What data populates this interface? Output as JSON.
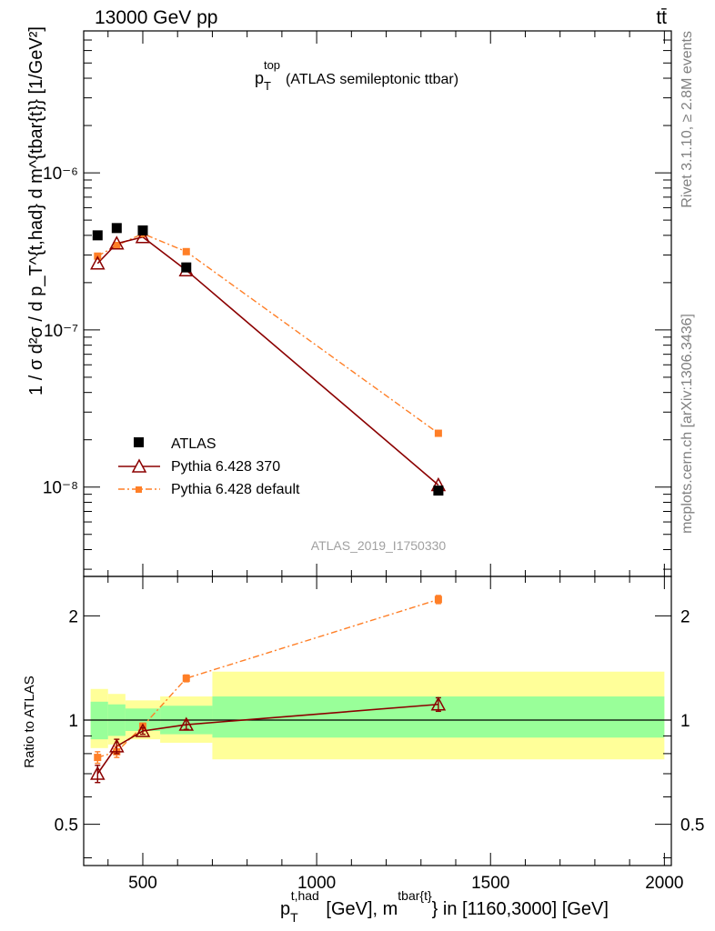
{
  "header": {
    "left": "13000 GeV pp",
    "right": "tt̄"
  },
  "side": {
    "rivet": "Rivet 3.1.10, ≥ 2.8M events",
    "mcplots": "mcplots.cern.ch [arXiv:1306.3436]"
  },
  "colors": {
    "data": "#000000",
    "mc370": "#8b0000",
    "mcdef": "#ff7f27",
    "band_inner": "#99ff99",
    "band_outer": "#ffff99"
  },
  "chart_data": [
    {
      "type": "scatter",
      "title": "p_T^top (ATLAS semileptonic ttbar)",
      "title_main": "p",
      "title_sub": "T",
      "title_sup": "top",
      "title_rest": "(ATLAS semileptonic ttbar)",
      "ylabel": "1 / σ d²σ / d p_T^{t,had} d m^{tbar{t}} [1/GeV²]",
      "yscale": "log",
      "ylim": [
        2.7e-09,
        8e-06
      ],
      "xlim": [
        330,
        2020
      ],
      "ytick_labels": [
        "10⁻⁸",
        "10⁻⁷",
        "10⁻⁶"
      ],
      "ytick_values": [
        1e-08,
        1e-07,
        1e-06
      ],
      "watermark": "ATLAS_2019_I1750330",
      "legend_placement": "bottom-left",
      "series": [
        {
          "name": "ATLAS",
          "marker": "filled-square",
          "x": [
            370,
            425,
            500,
            625,
            1350
          ],
          "y": [
            4e-07,
            4.45e-07,
            4.3e-07,
            2.5e-07,
            9.5e-09
          ]
        },
        {
          "name": "Pythia 6.428 370",
          "marker": "open-triangle",
          "x": [
            370,
            425,
            500,
            625,
            1350
          ],
          "y": [
            2.65e-07,
            3.55e-07,
            3.9e-07,
            2.4e-07,
            1.03e-08
          ]
        },
        {
          "name": "Pythia 6.428 default",
          "marker": "small-square",
          "x": [
            370,
            425,
            500,
            625,
            1350
          ],
          "y": [
            2.95e-07,
            3.45e-07,
            4.1e-07,
            3.15e-07,
            2.2e-08
          ]
        }
      ]
    },
    {
      "type": "line",
      "ylabel": "Ratio to ATLAS",
      "xlabel": "p_T^{t,had} [GeV], m^{tbar{t}} in [1160,3000] [GeV]",
      "yscale": "log",
      "ylim": [
        0.38,
        2.6
      ],
      "xlim": [
        330,
        2020
      ],
      "xtick_labels": [
        "500",
        "1000",
        "1500",
        "2000"
      ],
      "xtick_values": [
        500,
        1000,
        1500,
        2000
      ],
      "ytick_labels": [
        "0.5",
        "1",
        "2"
      ],
      "ytick_values": [
        0.5,
        1,
        2
      ],
      "bands": [
        {
          "x0": 350,
          "x1": 400,
          "inner": [
            0.88,
            1.13
          ],
          "outer": [
            0.83,
            1.23
          ]
        },
        {
          "x0": 400,
          "x1": 450,
          "inner": [
            0.9,
            1.11
          ],
          "outer": [
            0.85,
            1.19
          ]
        },
        {
          "x0": 450,
          "x1": 550,
          "inner": [
            0.93,
            1.08
          ],
          "outer": [
            0.88,
            1.14
          ]
        },
        {
          "x0": 550,
          "x1": 700,
          "inner": [
            0.91,
            1.1
          ],
          "outer": [
            0.86,
            1.17
          ]
        },
        {
          "x0": 700,
          "x1": 2000,
          "inner": [
            0.89,
            1.17
          ],
          "outer": [
            0.77,
            1.38
          ]
        }
      ],
      "series": [
        {
          "name": "Pythia 6.428 370",
          "x": [
            370,
            425,
            500,
            625,
            1350
          ],
          "y": [
            0.7,
            0.84,
            0.93,
            0.97,
            1.11
          ],
          "err": [
            0.04,
            0.04,
            0.02,
            0.03,
            0.05
          ]
        },
        {
          "name": "Pythia 6.428 default",
          "x": [
            370,
            425,
            500,
            625,
            1350
          ],
          "y": [
            0.78,
            0.81,
            0.96,
            1.32,
            2.23
          ],
          "err": [
            0.03,
            0.03,
            0.02,
            0.03,
            0.06
          ]
        }
      ]
    }
  ]
}
